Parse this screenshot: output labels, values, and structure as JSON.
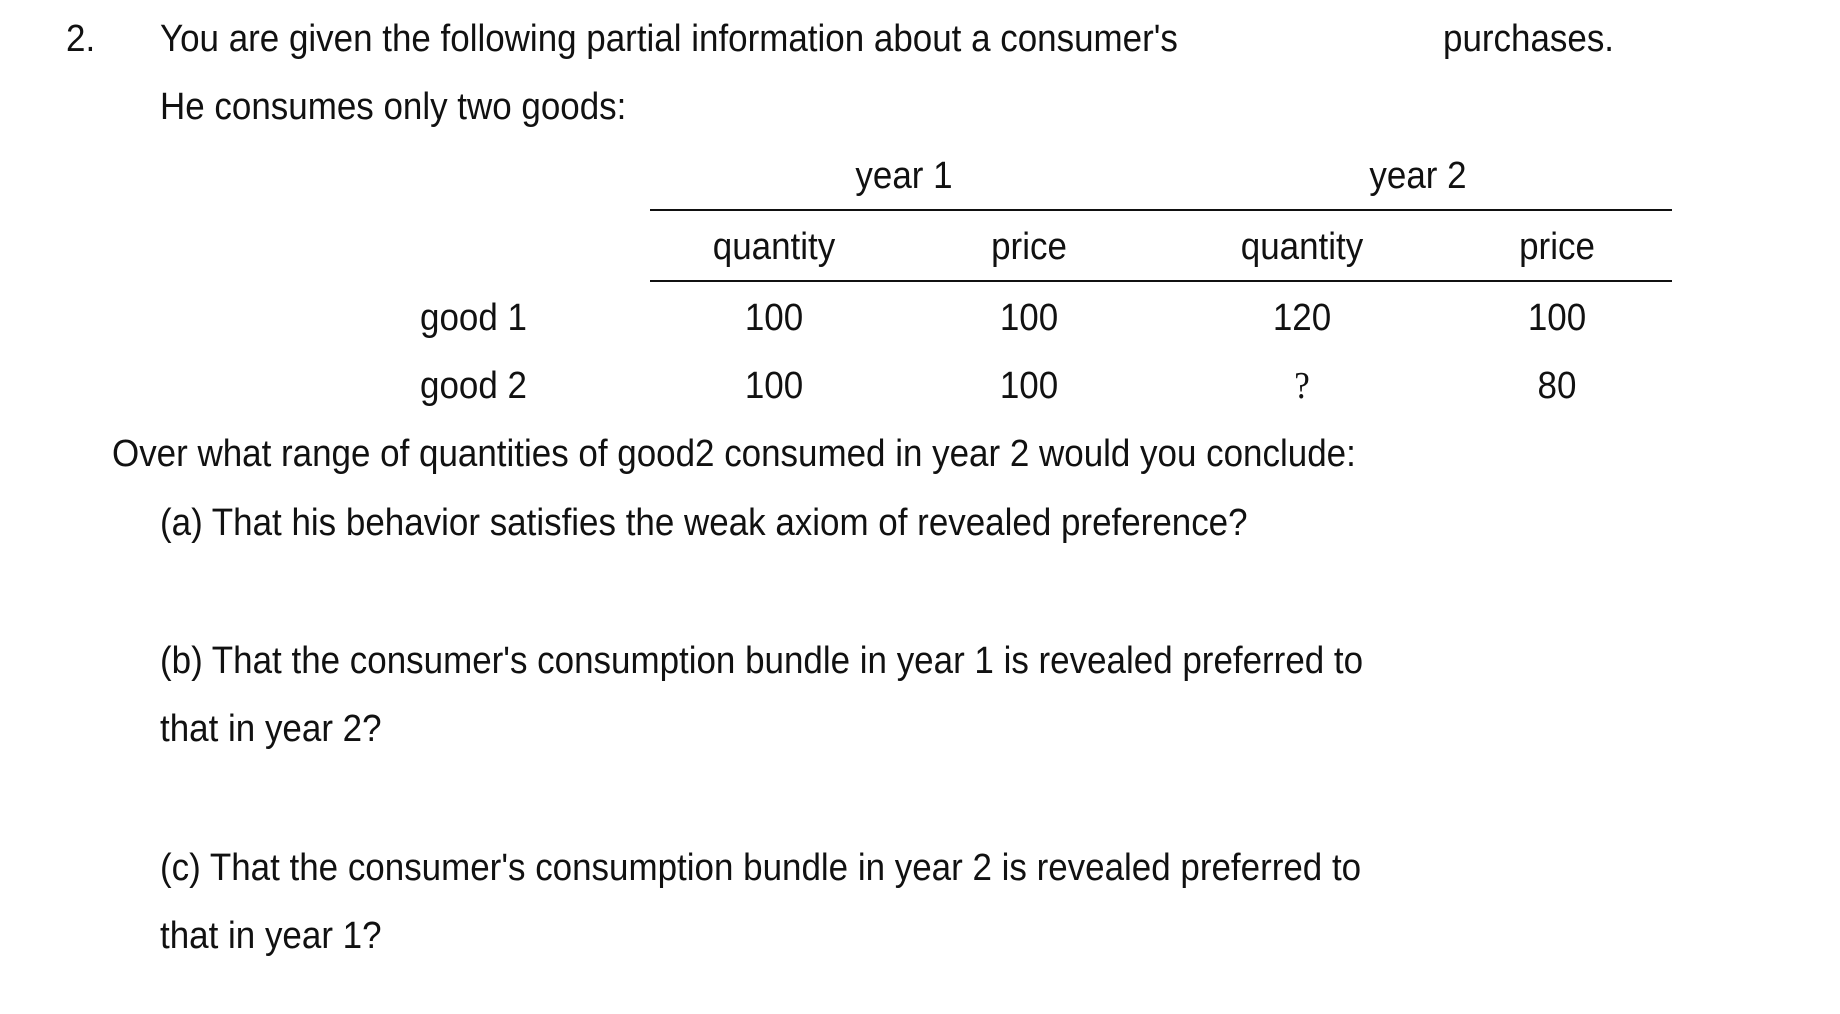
{
  "question": {
    "number": "2.",
    "intro_line1": "You are given the following partial information about a consumer's",
    "intro_line1_end": "purchases.",
    "intro_line2": "He consumes only two goods:",
    "prompt": "Over what range of quantities of good2 consumed in year 2 would you conclude:",
    "part_a": "(a) That his behavior satisfies the weak axiom of revealed preference?",
    "part_b_line1": "(b) That the consumer's consumption bundle in year 1 is revealed preferred to",
    "part_b_line2": "that in year 2?",
    "part_c_line1": "(c) That the consumer's consumption bundle in year 2 is revealed preferred to",
    "part_c_line2": "that in year 1?"
  },
  "table": {
    "group_headers": [
      "year 1",
      "year 2"
    ],
    "column_headers": [
      "quantity",
      "price",
      "quantity",
      "price"
    ],
    "rows": [
      {
        "label": "good 1",
        "cells": [
          "100",
          "100",
          "120",
          "100"
        ]
      },
      {
        "label": "good 2",
        "cells": [
          "100",
          "100",
          "?",
          "80"
        ]
      }
    ]
  }
}
